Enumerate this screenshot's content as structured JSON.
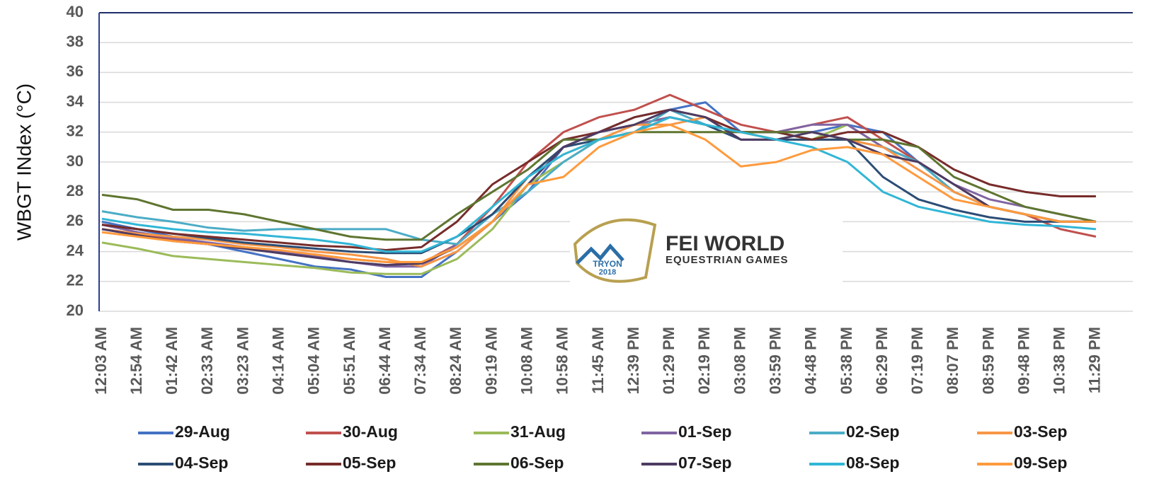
{
  "chart_data": {
    "type": "line",
    "y_label": "WBGT INdex (°C)",
    "categories": [
      "12:03 AM",
      "12:54 AM",
      "01:42 AM",
      "02:33 AM",
      "03:23 AM",
      "04:14 AM",
      "05:04 AM",
      "05:51 AM",
      "06:44 AM",
      "07:34 AM",
      "08:24 AM",
      "09:19 AM",
      "10:08 AM",
      "10:58 AM",
      "11:45 AM",
      "12:39 PM",
      "01:29 PM",
      "02:19 PM",
      "03:08 PM",
      "03:59 PM",
      "04:48 PM",
      "05:38 PM",
      "06:29 PM",
      "07:19 PM",
      "08:07 PM",
      "08:59 PM",
      "09:48 PM",
      "10:38 PM",
      "11:29 PM"
    ],
    "ylim": [
      20,
      40
    ],
    "yticks": [
      20,
      22,
      24,
      26,
      28,
      30,
      32,
      34,
      36,
      38,
      40
    ],
    "grid": true,
    "legend": "bottom",
    "series": [
      {
        "name": "29-Aug",
        "color": "#4472c4",
        "values": [
          26,
          25.5,
          25,
          24.5,
          24,
          23.5,
          23,
          22.8,
          22.3,
          22.3,
          24,
          26,
          28,
          31,
          32,
          33,
          33.5,
          34,
          32,
          32,
          32,
          32.5,
          32,
          30,
          28,
          27,
          26.5,
          26,
          26
        ]
      },
      {
        "name": "30-Aug",
        "color": "#c0504d",
        "values": [
          25.5,
          25.2,
          24.8,
          24.5,
          24.2,
          24,
          23.8,
          23.5,
          23.3,
          23.2,
          24.5,
          27,
          30,
          32,
          33,
          33.5,
          34.5,
          33.5,
          32.5,
          32,
          32.5,
          33,
          31.5,
          30,
          28.5,
          27,
          26.5,
          25.5,
          25
        ]
      },
      {
        "name": "31-Aug",
        "color": "#9bbb59",
        "values": [
          24.6,
          24.2,
          23.7,
          23.5,
          23.3,
          23.1,
          22.9,
          22.6,
          22.5,
          22.5,
          23.5,
          25.5,
          28.5,
          30,
          31.5,
          32.5,
          33,
          32.5,
          32,
          31.5,
          31.5,
          32.5,
          31,
          30,
          28,
          27,
          26.5,
          26,
          26
        ]
      },
      {
        "name": "01-Sep",
        "color": "#8064a2",
        "values": [
          25.8,
          25.3,
          24.9,
          24.6,
          24.3,
          24,
          23.7,
          23.3,
          23,
          23,
          24.5,
          26.5,
          29,
          31,
          32,
          32.5,
          33,
          32.5,
          32,
          32,
          32.5,
          32.5,
          31,
          30,
          28.5,
          27.5,
          27,
          26.5,
          26
        ]
      },
      {
        "name": "02-Sep",
        "color": "#4bacc6",
        "values": [
          26.7,
          26.3,
          26,
          25.6,
          25.4,
          25.5,
          25.5,
          25.5,
          25.5,
          24.8,
          24.5,
          26.5,
          28,
          30,
          31.5,
          32,
          33.5,
          32.5,
          32,
          32,
          31.5,
          31.5,
          31,
          30,
          28,
          27,
          26.5,
          26,
          26
        ]
      },
      {
        "name": "03-Sep",
        "color": "#f79646",
        "values": [
          25.5,
          25.2,
          25,
          24.8,
          24.5,
          24.3,
          24,
          23.8,
          23.5,
          23,
          24,
          26,
          29,
          30.5,
          31.5,
          32.5,
          32.5,
          33,
          32,
          31.5,
          31.5,
          31.5,
          31,
          29.5,
          28,
          27,
          26.5,
          26,
          26
        ]
      },
      {
        "name": "04-Sep",
        "color": "#2c4d75",
        "values": [
          25.8,
          25.5,
          25.2,
          24.9,
          24.6,
          24.4,
          24.2,
          24,
          23.9,
          23.9,
          25,
          26.5,
          29,
          31,
          31.5,
          32,
          33,
          32.5,
          31.5,
          31.5,
          31.5,
          31.5,
          29,
          27.5,
          26.8,
          26.3,
          26,
          26,
          26
        ]
      },
      {
        "name": "05-Sep",
        "color": "#772c2a",
        "values": [
          25.8,
          25.5,
          25.2,
          25,
          24.8,
          24.6,
          24.4,
          24.3,
          24.1,
          24.3,
          26,
          28.5,
          30,
          31.5,
          32,
          33,
          33.5,
          33,
          32,
          32,
          31.5,
          32,
          32,
          31,
          29.5,
          28.5,
          28,
          27.7,
          27.7
        ]
      },
      {
        "name": "06-Sep",
        "color": "#5f7530",
        "values": [
          27.8,
          27.5,
          26.8,
          26.8,
          26.5,
          26,
          25.5,
          25,
          24.8,
          24.8,
          26.5,
          28,
          29.5,
          31.5,
          31.5,
          32,
          32,
          32,
          32,
          32,
          32,
          31.5,
          31.5,
          31,
          29,
          28,
          27,
          26.5,
          26
        ]
      },
      {
        "name": "07-Sep",
        "color": "#4d3b62",
        "values": [
          25.5,
          25.1,
          24.7,
          24.5,
          24.2,
          23.9,
          23.6,
          23.3,
          23.1,
          23.2,
          24.3,
          26,
          28.5,
          31,
          32,
          32.5,
          33.5,
          33,
          31.5,
          31.5,
          32,
          31.5,
          30.5,
          30,
          28.5,
          27,
          26.5,
          26,
          26
        ]
      },
      {
        "name": "08-Sep",
        "color": "#31b6d6",
        "values": [
          26.2,
          25.8,
          25.5,
          25.3,
          25.2,
          25,
          24.8,
          24.5,
          24,
          24,
          25,
          27,
          29,
          30.5,
          31.5,
          32,
          33,
          32.5,
          32,
          31.5,
          31,
          30,
          28,
          27,
          26.5,
          26,
          25.8,
          25.7,
          25.5
        ]
      },
      {
        "name": "09-Sep",
        "color": "#ff9a3c",
        "values": [
          25.3,
          25,
          24.7,
          24.5,
          24.3,
          24.1,
          23.8,
          23.5,
          23.3,
          23.3,
          24.3,
          26,
          28.5,
          29,
          31,
          32,
          32.5,
          31.5,
          29.7,
          30,
          30.8,
          31,
          30.5,
          29,
          27.5,
          27,
          26.5,
          26,
          26
        ]
      }
    ]
  },
  "logo": {
    "brand": "FEI WORLD",
    "tagline": "EQUESTRIAN GAMES",
    "badge_top": "TRYON",
    "badge_bottom": "2018"
  }
}
